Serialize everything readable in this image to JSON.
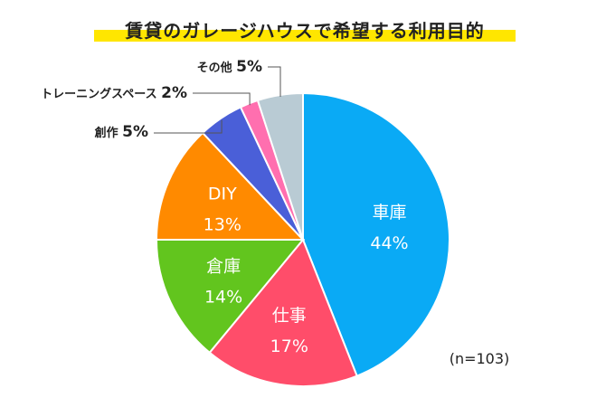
{
  "chart_data": {
    "type": "pie",
    "title": "賃貸のガレージハウスで希望する利用目的",
    "slices": [
      {
        "label": "車庫",
        "value": 44,
        "display": "44%",
        "color": "#0aaaf5",
        "label_pos": "inside"
      },
      {
        "label": "仕事",
        "value": 17,
        "display": "17%",
        "color": "#ff4d6a",
        "label_pos": "inside"
      },
      {
        "label": "倉庫",
        "value": 14,
        "display": "14%",
        "color": "#62c51e",
        "label_pos": "inside"
      },
      {
        "label": "DIY",
        "value": 13,
        "display": "13%",
        "color": "#ff8a00",
        "label_pos": "inside"
      },
      {
        "label": "創作",
        "value": 5,
        "display": "5%",
        "color": "#4a5fd8",
        "label_pos": "outside"
      },
      {
        "label": "トレーニングスペース",
        "value": 2,
        "display": "2%",
        "color": "#ff6faf",
        "label_pos": "outside"
      },
      {
        "label": "その他",
        "value": 5,
        "display": "5%",
        "color": "#b9cbd4",
        "label_pos": "outside"
      }
    ],
    "note": "(n=103)",
    "title_highlight_color": "#ffe600",
    "start": "12 o'clock",
    "direction": "clockwise"
  }
}
